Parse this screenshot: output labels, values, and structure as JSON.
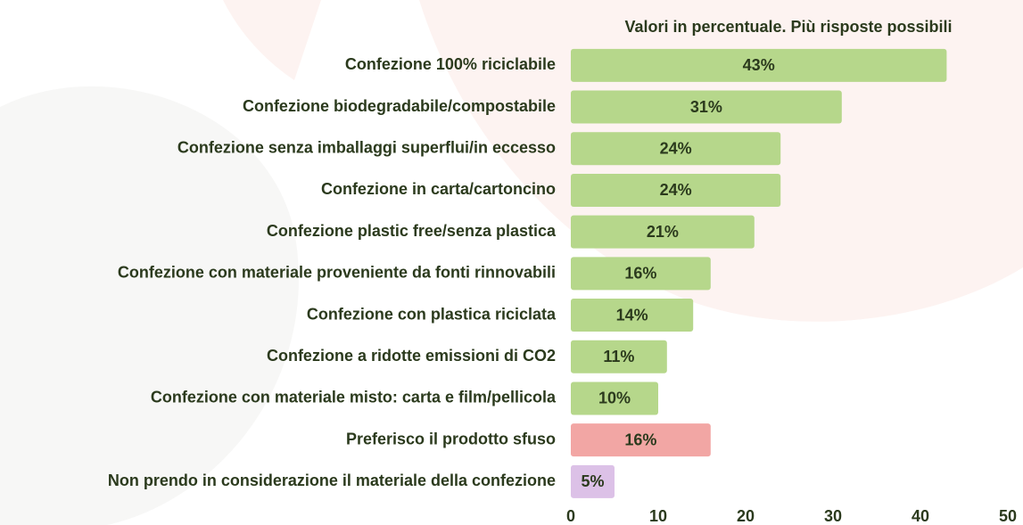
{
  "chart_data": {
    "type": "bar",
    "orientation": "horizontal",
    "subtitle": "Valori in percentuale. Più risposte possibili",
    "categories": [
      "Confezione 100% riciclabile",
      "Confezione biodegradabile/compostabile",
      "Confezione senza imballaggi superflui/in eccesso",
      "Confezione in carta/cartoncino",
      "Confezione plastic free/senza plastica",
      "Confezione con materiale proveniente da fonti rinnovabili",
      "Confezione con plastica riciclata",
      "Confezione a ridotte emissioni di CO2",
      "Confezione con materiale misto: carta e film/pellicola",
      "Preferisco il prodotto sfuso",
      "Non prendo in considerazione il materiale della confezione"
    ],
    "values": [
      43,
      31,
      24,
      24,
      21,
      16,
      14,
      11,
      10,
      16,
      5
    ],
    "value_labels": [
      "43%",
      "31%",
      "24%",
      "24%",
      "21%",
      "16%",
      "14%",
      "11%",
      "10%",
      "16%",
      "5%"
    ],
    "colors": [
      "#b6d78b",
      "#b6d78b",
      "#b6d78b",
      "#b6d78b",
      "#b6d78b",
      "#b6d78b",
      "#b6d78b",
      "#b6d78b",
      "#b6d78b",
      "#f2a6a4",
      "#dcc1e7"
    ],
    "xlim": [
      0,
      50
    ],
    "xticks": [
      0,
      10,
      20,
      30,
      40,
      50
    ],
    "grid": false
  }
}
